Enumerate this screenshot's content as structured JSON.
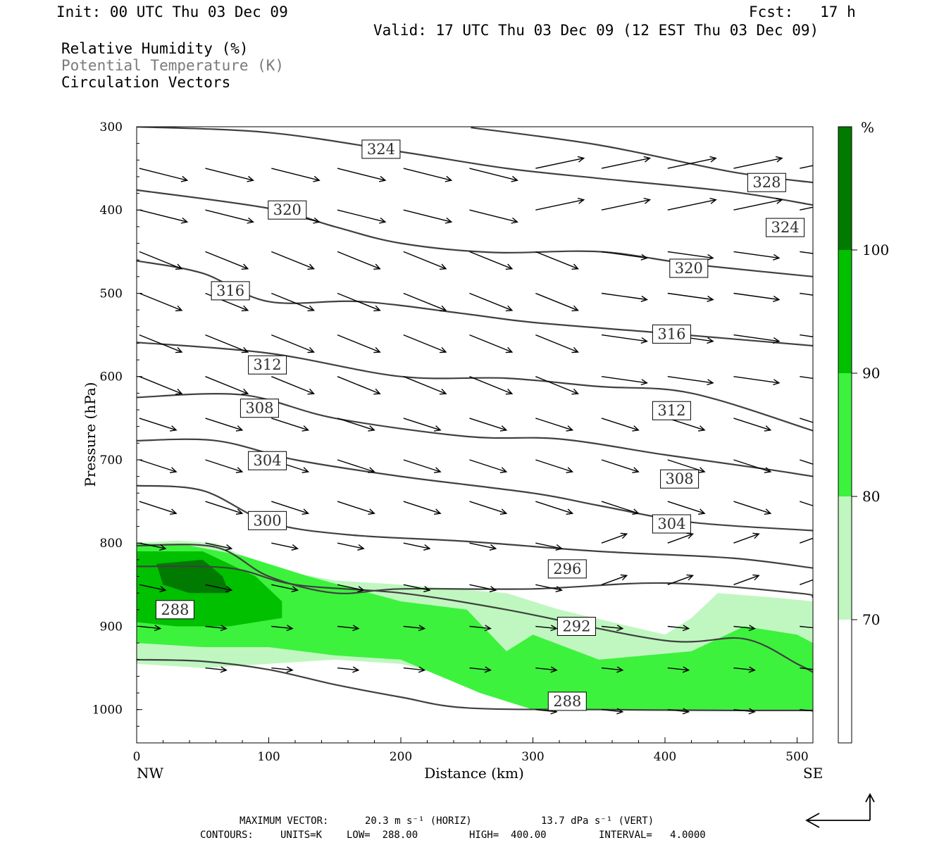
{
  "header": {
    "init": "Init: 00 UTC Thu 03 Dec 09",
    "fcst": "Fcst:   17 h",
    "valid": "Valid: 17 UTC Thu 03 Dec 09 (12 EST Thu 03 Dec 09)",
    "legend_rh": "Relative Humidity (%)",
    "legend_theta": "Potential Temperature (K)",
    "legend_vec": "Circulation Vectors"
  },
  "colors": {
    "rh70": "#c0f7c0",
    "rh80": "#3df23d",
    "rh90": "#00c000",
    "rh100": "#007a00",
    "contour": "#404040"
  },
  "chart_data": {
    "type": "cross-section",
    "xlabel": "Distance (km)",
    "ylabel": "Pressure (hPa)",
    "xlim": [
      0,
      512
    ],
    "ylim": [
      1040,
      300
    ],
    "x_ticks": [
      0,
      100,
      200,
      300,
      400,
      500
    ],
    "y_ticks": [
      300,
      400,
      500,
      600,
      700,
      800,
      900,
      1000
    ],
    "left_end_label": "NW",
    "right_end_label": "SE",
    "colorbar": {
      "unit": "%",
      "levels": [
        70,
        80,
        90,
        100
      ],
      "level_labels": [
        "70",
        "80",
        "90",
        "100"
      ]
    },
    "theta_contours": [
      {
        "value": 324,
        "labels": [
          "324",
          "324"
        ],
        "label_pts": [
          [
            185,
            327
          ],
          [
            491,
            421
          ]
        ],
        "pts": [
          [
            0,
            300
          ],
          [
            100,
            307
          ],
          [
            200,
            330
          ],
          [
            280,
            350
          ],
          [
            350,
            362
          ],
          [
            450,
            378
          ],
          [
            512,
            394
          ]
        ]
      },
      {
        "value": 328,
        "labels": [
          "328"
        ],
        "label_pts": [
          [
            477,
            367
          ]
        ],
        "pts": [
          [
            253,
            301
          ],
          [
            350,
            322
          ],
          [
            450,
            354
          ],
          [
            512,
            367
          ]
        ]
      },
      {
        "value": 320,
        "labels": [
          "320",
          "320"
        ],
        "label_pts": [
          [
            114,
            400
          ],
          [
            418,
            470
          ]
        ],
        "pts": [
          [
            0,
            376
          ],
          [
            100,
            398
          ],
          [
            150,
            420
          ],
          [
            200,
            440
          ],
          [
            270,
            451
          ],
          [
            350,
            450
          ],
          [
            420,
            465
          ],
          [
            512,
            480
          ]
        ]
      },
      {
        "value": 316,
        "labels": [
          "316",
          "316"
        ],
        "label_pts": [
          [
            71,
            497
          ],
          [
            405,
            549
          ]
        ],
        "pts": [
          [
            0,
            461
          ],
          [
            50,
            476
          ],
          [
            100,
            510
          ],
          [
            170,
            510
          ],
          [
            250,
            525
          ],
          [
            300,
            535
          ],
          [
            400,
            548
          ],
          [
            512,
            563
          ]
        ]
      },
      {
        "value": 312,
        "labels": [
          "312",
          "312"
        ],
        "label_pts": [
          [
            99,
            586
          ],
          [
            405,
            641
          ]
        ],
        "pts": [
          [
            0,
            559
          ],
          [
            100,
            572
          ],
          [
            200,
            600
          ],
          [
            280,
            602
          ],
          [
            350,
            612
          ],
          [
            420,
            620
          ],
          [
            512,
            665
          ]
        ]
      },
      {
        "value": 308,
        "labels": [
          "308",
          "308"
        ],
        "label_pts": [
          [
            93,
            638
          ],
          [
            411,
            723
          ]
        ],
        "pts": [
          [
            0,
            625
          ],
          [
            80,
            622
          ],
          [
            150,
            650
          ],
          [
            250,
            672
          ],
          [
            320,
            675
          ],
          [
            400,
            694
          ],
          [
            480,
            712
          ],
          [
            512,
            720
          ]
        ]
      },
      {
        "value": 304,
        "labels": [
          "304",
          "304"
        ],
        "label_pts": [
          [
            99,
            701
          ],
          [
            405,
            777
          ]
        ],
        "pts": [
          [
            0,
            677
          ],
          [
            60,
            677
          ],
          [
            120,
            700
          ],
          [
            200,
            720
          ],
          [
            300,
            740
          ],
          [
            350,
            755
          ],
          [
            420,
            775
          ],
          [
            512,
            785
          ]
        ]
      },
      {
        "value": 300,
        "labels": [
          "300"
        ],
        "label_pts": [
          [
            99,
            773
          ]
        ],
        "pts": [
          [
            0,
            731
          ],
          [
            50,
            737
          ],
          [
            100,
            775
          ],
          [
            160,
            790
          ],
          [
            250,
            798
          ],
          [
            350,
            810
          ],
          [
            450,
            818
          ],
          [
            512,
            830
          ]
        ]
      },
      {
        "value": 296,
        "labels": [
          "296"
        ],
        "label_pts": [
          [
            326,
            831
          ]
        ],
        "pts": [
          [
            0,
            803
          ],
          [
            60,
            805
          ],
          [
            100,
            840
          ],
          [
            150,
            860
          ],
          [
            200,
            855
          ],
          [
            300,
            855
          ],
          [
            400,
            848
          ],
          [
            500,
            860
          ],
          [
            512,
            865
          ]
        ]
      },
      {
        "value": 292,
        "labels": [
          "292"
        ],
        "label_pts": [
          [
            333,
            900
          ]
        ],
        "pts": [
          [
            0,
            828
          ],
          [
            70,
            830
          ],
          [
            120,
            850
          ],
          [
            200,
            860
          ],
          [
            280,
            880
          ],
          [
            400,
            917
          ],
          [
            460,
            915
          ],
          [
            500,
            945
          ],
          [
            512,
            955
          ]
        ]
      },
      {
        "value": 288,
        "labels": [
          "288",
          "288"
        ],
        "label_pts": [
          [
            29,
            880
          ],
          [
            326,
            990
          ]
        ],
        "pts": [
          [
            0,
            940
          ],
          [
            50,
            942
          ],
          [
            100,
            952
          ],
          [
            150,
            970
          ],
          [
            200,
            985
          ],
          [
            250,
            998
          ],
          [
            350,
            1000
          ],
          [
            450,
            1001
          ],
          [
            512,
            1001
          ]
        ]
      }
    ],
    "rh_fields": [
      {
        "level": 70,
        "pts": [
          [
            0,
            800
          ],
          [
            30,
            797
          ],
          [
            60,
            800
          ],
          [
            100,
            830
          ],
          [
            150,
            845
          ],
          [
            200,
            850
          ],
          [
            280,
            860
          ],
          [
            320,
            880
          ],
          [
            400,
            910
          ],
          [
            420,
            890
          ],
          [
            440,
            860
          ],
          [
            480,
            865
          ],
          [
            512,
            870
          ],
          [
            512,
            1000
          ],
          [
            420,
            1000
          ],
          [
            300,
            995
          ],
          [
            250,
            965
          ],
          [
            200,
            945
          ],
          [
            150,
            940
          ],
          [
            100,
            945
          ],
          [
            50,
            950
          ],
          [
            0,
            945
          ]
        ]
      },
      {
        "level": 80,
        "pts": [
          [
            0,
            800
          ],
          [
            40,
            803
          ],
          [
            80,
            815
          ],
          [
            130,
            840
          ],
          [
            200,
            870
          ],
          [
            250,
            880
          ],
          [
            280,
            930
          ],
          [
            300,
            910
          ],
          [
            350,
            940
          ],
          [
            420,
            930
          ],
          [
            460,
            900
          ],
          [
            500,
            910
          ],
          [
            512,
            920
          ],
          [
            512,
            1000
          ],
          [
            300,
            1000
          ],
          [
            260,
            980
          ],
          [
            200,
            940
          ],
          [
            150,
            935
          ],
          [
            100,
            925
          ],
          [
            50,
            925
          ],
          [
            0,
            920
          ]
        ]
      },
      {
        "level": 90,
        "pts": [
          [
            0,
            810
          ],
          [
            50,
            810
          ],
          [
            90,
            840
          ],
          [
            110,
            870
          ],
          [
            110,
            890
          ],
          [
            70,
            900
          ],
          [
            30,
            900
          ],
          [
            0,
            895
          ]
        ]
      },
      {
        "level": 100,
        "pts": [
          [
            15,
            825
          ],
          [
            50,
            820
          ],
          [
            65,
            840
          ],
          [
            70,
            860
          ],
          [
            40,
            860
          ],
          [
            20,
            850
          ]
        ]
      }
    ],
    "max_vector_horiz": "20.3 m s⁻¹ (HORIZ)",
    "max_vector_vert": "13.7 dPa s⁻¹ (VERT)",
    "max_vector_label": "MAXIMUM VECTOR:",
    "contours_label": "CONTOURS:",
    "contours_units": "UNITS=K",
    "contours_low": "LOW=  288.00",
    "contours_high": "HIGH=  400.00",
    "contours_interval": "INTERVAL=   4.0000"
  }
}
